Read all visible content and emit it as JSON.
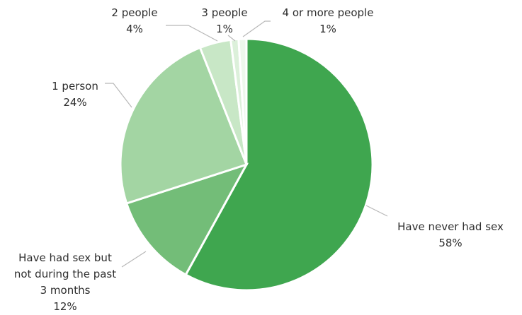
{
  "chart_data": {
    "type": "pie",
    "title": "",
    "slices": [
      {
        "label": "Have never had sex",
        "value": 58,
        "value_label": "58%",
        "color": "#3fa64f"
      },
      {
        "label": "Have had sex but not during the past 3 months",
        "label_lines": [
          "Have had sex but",
          "not during the past",
          "3 months"
        ],
        "value": 12,
        "value_label": "12%",
        "color": "#73bd78"
      },
      {
        "label": "1 person",
        "value": 24,
        "value_label": "24%",
        "color": "#a3d5a3"
      },
      {
        "label": "2 people",
        "value": 4,
        "value_label": "4%",
        "color": "#c8e7c6"
      },
      {
        "label": "3 people",
        "value": 1,
        "value_label": "1%",
        "color": "#dcf0da"
      },
      {
        "label": "4 or more people",
        "value": 1,
        "value_label": "1%",
        "color": "#edf8ec"
      }
    ],
    "legend": "none",
    "data_labels": "outside with leader lines"
  }
}
